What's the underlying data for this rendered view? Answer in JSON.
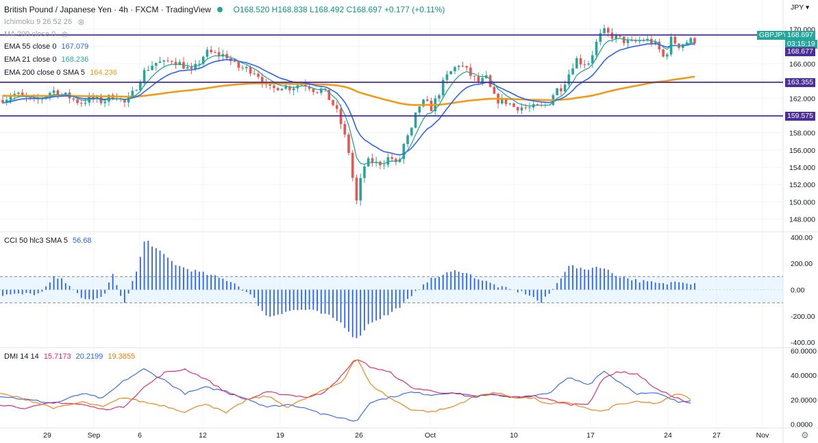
{
  "header": {
    "symbol": "British Pound / Japanese Yen · 4h · FXCM · TradingView",
    "ohlc": "O168.520 H168.838 L168.492 C168.697 +0.177 (+0.11%)"
  },
  "indicators": {
    "ichimoku": "Ichimoku 9 26 52 26",
    "ma200": "MA 200 close 0",
    "ema55": {
      "label": "EMA 55 close 0",
      "value": "167.079"
    },
    "ema21": {
      "label": "EMA 21 close 0",
      "value": "168.236"
    },
    "ema200": {
      "label": "EMA 200 close 0 SMA 5",
      "value": "164.236"
    },
    "cci": {
      "label": "CCI 50 hlc3 SMA 5",
      "value": "56.68"
    },
    "dmi": {
      "label": "DMI 14 14",
      "v1": "15.7173",
      "v2": "20.2199",
      "v3": "19.3855"
    }
  },
  "price_axis": {
    "currency": "JPY",
    "ticks": [
      "170.000",
      "168.000",
      "166.000",
      "164.000",
      "162.000",
      "160.000",
      "158.000",
      "156.000",
      "154.000",
      "152.000",
      "150.000",
      "148.000"
    ]
  },
  "price_tags": {
    "symbol_badge": "GBPJPY",
    "current": "168.697",
    "countdown": "03:15:19",
    "line1": "168.677",
    "line2": "163.355",
    "line3": "159.575"
  },
  "cci_axis": [
    "400.00",
    "200.00",
    "0.00",
    "-200.00",
    "-400.00"
  ],
  "dmi_axis": [
    "60.0000",
    "40.0000",
    "20.0000",
    "0.0000"
  ],
  "time_axis": [
    "29",
    "Sep",
    "6",
    "12",
    "19",
    "26",
    "Oct",
    "10",
    "17",
    "24",
    "27",
    "Nov"
  ],
  "colors": {
    "up": "#26a69a",
    "down": "#ef5350",
    "ema21": "#26a69a",
    "ema55": "#2962ff",
    "ema200": "#f59a10",
    "hline": "#4a2e99",
    "cci": "#2962ff",
    "dmi_plus": "#2962ff",
    "dmi_minus": "#e91e63",
    "adx": "#f57c00"
  },
  "chart_data": [
    {
      "type": "candlestick",
      "title": "British Pound / Japanese Yen · 4h · FXCM",
      "ylim": [
        147,
        171
      ],
      "x": [
        "29",
        "Sep",
        "6",
        "12",
        "19",
        "26",
        "Oct",
        "10",
        "17",
        "24",
        "27",
        "Nov"
      ],
      "close_path": [
        [
          0,
          161.8
        ],
        [
          10,
          162.1
        ],
        [
          20,
          162.5
        ],
        [
          30,
          162.3
        ],
        [
          40,
          161.9
        ],
        [
          50,
          161.6
        ],
        [
          60,
          162.0
        ],
        [
          70,
          162.6
        ],
        [
          80,
          162.9
        ],
        [
          90,
          162.4
        ],
        [
          100,
          162.2
        ],
        [
          110,
          161.7
        ],
        [
          120,
          161.5
        ],
        [
          130,
          162.0
        ],
        [
          140,
          161.8
        ],
        [
          150,
          161.6
        ],
        [
          160,
          162.1
        ],
        [
          170,
          162.4
        ],
        [
          180,
          161.3
        ],
        [
          190,
          162.0
        ],
        [
          200,
          163.5
        ],
        [
          210,
          165.0
        ],
        [
          220,
          165.8
        ],
        [
          230,
          166.2
        ],
        [
          240,
          166.0
        ],
        [
          250,
          166.5
        ],
        [
          260,
          166.1
        ],
        [
          270,
          165.7
        ],
        [
          280,
          165.0
        ],
        [
          290,
          166.1
        ],
        [
          300,
          167.3
        ],
        [
          310,
          167.2
        ],
        [
          320,
          167.0
        ],
        [
          330,
          167.0
        ],
        [
          340,
          166.0
        ],
        [
          350,
          165.5
        ],
        [
          360,
          165.4
        ],
        [
          370,
          165.2
        ],
        [
          380,
          164.5
        ],
        [
          390,
          163.0
        ],
        [
          400,
          163.1
        ],
        [
          410,
          163.5
        ],
        [
          420,
          163.2
        ],
        [
          430,
          163.4
        ],
        [
          440,
          163.8
        ],
        [
          450,
          163.5
        ],
        [
          460,
          162.9
        ],
        [
          470,
          163.0
        ],
        [
          480,
          162.0
        ],
        [
          490,
          160.8
        ],
        [
          500,
          158.5
        ],
        [
          510,
          155.5
        ],
        [
          520,
          149.8
        ],
        [
          530,
          154.0
        ],
        [
          540,
          154.8
        ],
        [
          550,
          154.4
        ],
        [
          560,
          154.6
        ],
        [
          570,
          155.3
        ],
        [
          580,
          154.0
        ],
        [
          590,
          156.8
        ],
        [
          600,
          158.0
        ],
        [
          610,
          161.0
        ],
        [
          620,
          161.6
        ],
        [
          630,
          160.8
        ],
        [
          640,
          162.5
        ],
        [
          650,
          164.3
        ],
        [
          660,
          165.2
        ],
        [
          670,
          166.0
        ],
        [
          680,
          165.3
        ],
        [
          690,
          164.4
        ],
        [
          700,
          163.8
        ],
        [
          710,
          164.3
        ],
        [
          720,
          162.2
        ],
        [
          730,
          161.6
        ],
        [
          740,
          161.6
        ],
        [
          750,
          161.0
        ],
        [
          760,
          161.0
        ],
        [
          770,
          160.8
        ],
        [
          780,
          160.9
        ],
        [
          790,
          161.0
        ],
        [
          800,
          161.3
        ],
        [
          810,
          162.9
        ],
        [
          820,
          163.3
        ],
        [
          830,
          164.8
        ],
        [
          840,
          166.6
        ],
        [
          850,
          166.1
        ],
        [
          860,
          166.2
        ],
        [
          870,
          168.3
        ],
        [
          880,
          169.8
        ],
        [
          890,
          169.3
        ],
        [
          900,
          169.0
        ],
        [
          910,
          168.7
        ],
        [
          920,
          168.3
        ],
        [
          930,
          168.6
        ],
        [
          940,
          168.8
        ],
        [
          950,
          168.6
        ],
        [
          960,
          167.9
        ],
        [
          970,
          166.5
        ],
        [
          980,
          168.9
        ],
        [
          990,
          168.1
        ],
        [
          1000,
          168.5
        ],
        [
          1010,
          168.7
        ]
      ]
    },
    {
      "type": "bar",
      "title": "CCI 50 hlc3 SMA 5",
      "ylim": [
        -430,
        430
      ],
      "bands": [
        100,
        -100
      ]
    },
    {
      "type": "line",
      "title": "DMI 14 14",
      "ylim": [
        -2,
        62
      ],
      "series": [
        {
          "name": "+DI",
          "points": [
            [
              0,
              23
            ],
            [
              40,
              20
            ],
            [
              80,
              17
            ],
            [
              120,
              25
            ],
            [
              150,
              21
            ],
            [
              180,
              35
            ],
            [
              210,
              45
            ],
            [
              240,
              36
            ],
            [
              270,
              25
            ],
            [
              300,
              30
            ],
            [
              330,
              27
            ],
            [
              360,
              21
            ],
            [
              390,
              14
            ],
            [
              420,
              16
            ],
            [
              450,
              13
            ],
            [
              470,
              8
            ],
            [
              500,
              5
            ],
            [
              520,
              2
            ],
            [
              540,
              18
            ],
            [
              570,
              22
            ],
            [
              600,
              26
            ],
            [
              630,
              24
            ],
            [
              660,
              26
            ],
            [
              690,
              22
            ],
            [
              720,
              24
            ],
            [
              750,
              22
            ],
            [
              780,
              23
            ],
            [
              800,
              25
            ],
            [
              830,
              38
            ],
            [
              860,
              32
            ],
            [
              880,
              44
            ],
            [
              900,
              36
            ],
            [
              930,
              25
            ],
            [
              960,
              25
            ],
            [
              990,
              18
            ],
            [
              1010,
              20
            ]
          ]
        },
        {
          "name": "-DI",
          "points": [
            [
              0,
              16
            ],
            [
              40,
              13
            ],
            [
              80,
              18
            ],
            [
              120,
              16
            ],
            [
              150,
              12
            ],
            [
              180,
              14
            ],
            [
              210,
              30
            ],
            [
              240,
              42
            ],
            [
              270,
              45
            ],
            [
              300,
              37
            ],
            [
              330,
              26
            ],
            [
              360,
              20
            ],
            [
              390,
              26
            ],
            [
              420,
              24
            ],
            [
              450,
              22
            ],
            [
              470,
              25
            ],
            [
              500,
              40
            ],
            [
              520,
              54
            ],
            [
              540,
              47
            ],
            [
              570,
              42
            ],
            [
              600,
              30
            ],
            [
              630,
              27
            ],
            [
              660,
              25
            ],
            [
              690,
              23
            ],
            [
              720,
              24
            ],
            [
              750,
              22
            ],
            [
              780,
              23
            ],
            [
              800,
              20
            ],
            [
              830,
              16
            ],
            [
              860,
              17
            ],
            [
              880,
              37
            ],
            [
              900,
              43
            ],
            [
              930,
              41
            ],
            [
              960,
              28
            ],
            [
              990,
              21
            ],
            [
              1010,
              16
            ]
          ]
        },
        {
          "name": "ADX",
          "points": [
            [
              0,
              25
            ],
            [
              40,
              20
            ],
            [
              80,
              13
            ],
            [
              120,
              18
            ],
            [
              150,
              14
            ],
            [
              180,
              22
            ],
            [
              210,
              18
            ],
            [
              240,
              15
            ],
            [
              270,
              10
            ],
            [
              300,
              17
            ],
            [
              330,
              9
            ],
            [
              360,
              20
            ],
            [
              390,
              23
            ],
            [
              420,
              14
            ],
            [
              450,
              22
            ],
            [
              470,
              27
            ],
            [
              500,
              35
            ],
            [
              520,
              55
            ],
            [
              540,
              33
            ],
            [
              570,
              21
            ],
            [
              600,
              12
            ],
            [
              630,
              10
            ],
            [
              660,
              14
            ],
            [
              690,
              22
            ],
            [
              720,
              26
            ],
            [
              750,
              22
            ],
            [
              780,
              21
            ],
            [
              800,
              16
            ],
            [
              830,
              18
            ],
            [
              860,
              12
            ],
            [
              880,
              10
            ],
            [
              900,
              16
            ],
            [
              930,
              18
            ],
            [
              960,
              17
            ],
            [
              990,
              25
            ],
            [
              1010,
              20
            ]
          ]
        }
      ]
    }
  ]
}
